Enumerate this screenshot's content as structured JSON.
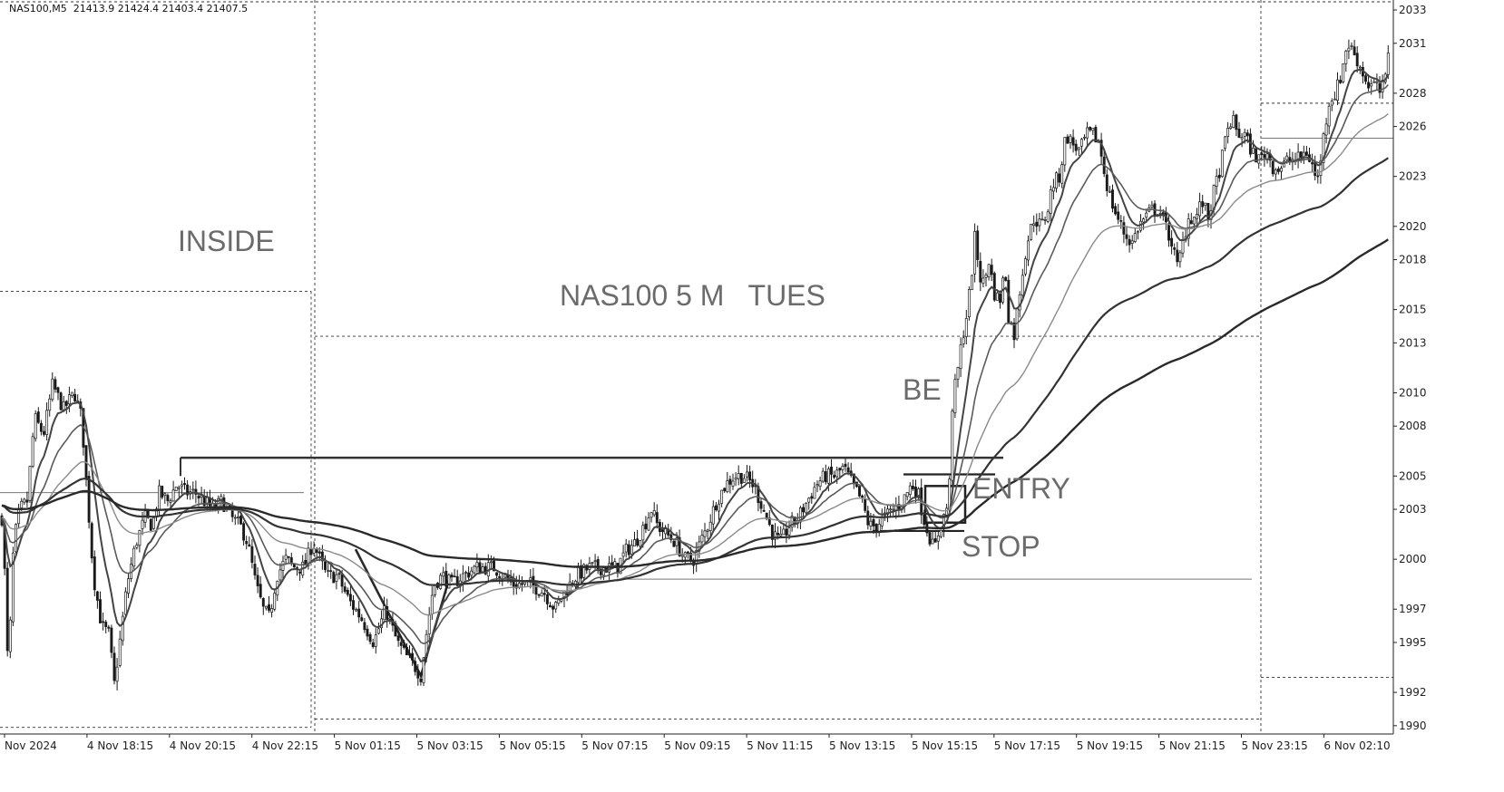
{
  "chart_data": {
    "type": "candlestick",
    "symbol_header": "NAS100,M5  21413.9 21424.4 21403.4 21407.5",
    "y_tick_labels": [
      "2033",
      "2031",
      "2028",
      "2026",
      "2023",
      "2020",
      "2018",
      "2015",
      "2013",
      "2010",
      "2008",
      "2005",
      "2003",
      "2000",
      "1997",
      "1995",
      "1992",
      "1990"
    ],
    "y_tick_values": [
      21033,
      21031,
      21028,
      21026,
      21023,
      21020,
      21018,
      21015,
      21013,
      21010,
      21008,
      21005,
      21003,
      21000,
      20997,
      20995,
      20992,
      20990
    ],
    "ylim": [
      20989.5,
      21033.6
    ],
    "x_tick_labels": [
      "Nov 2024",
      "4 Nov 18:15",
      "4 Nov 20:15",
      "4 Nov 22:15",
      "5 Nov 01:15",
      "5 Nov 03:15",
      "5 Nov 05:15",
      "5 Nov 07:15",
      "5 Nov 09:15",
      "5 Nov 11:15",
      "5 Nov 13:15",
      "5 Nov 15:15",
      "5 Nov 17:15",
      "5 Nov 19:15",
      "5 Nov 21:15",
      "5 Nov 23:15",
      "6 Nov 02:10"
    ],
    "annotations": [
      "INSIDE",
      "NAS100 5 M   TUES",
      "BE",
      "ENTRY",
      "STOP"
    ],
    "price_path": [
      [
        0,
        21004.0
      ],
      [
        4,
        21001.0
      ],
      [
        9,
        20993.0
      ],
      [
        15,
        21001.0
      ],
      [
        22,
        21003.0
      ],
      [
        30,
        21003.5
      ],
      [
        38,
        21008.5
      ],
      [
        48,
        21007.5
      ],
      [
        58,
        21010.5
      ],
      [
        70,
        21009.0
      ],
      [
        82,
        21010.0
      ],
      [
        90,
        21008.5
      ],
      [
        96,
        21004.0
      ],
      [
        103,
        20999.0
      ],
      [
        112,
        20996.0
      ],
      [
        120,
        20995.5
      ],
      [
        126,
        20992.5
      ],
      [
        132,
        20995.0
      ],
      [
        140,
        20998.5
      ],
      [
        150,
        21001.0
      ],
      [
        160,
        21002.5
      ],
      [
        168,
        21002.0
      ],
      [
        175,
        21004.0
      ],
      [
        185,
        21003.5
      ],
      [
        195,
        21004.5
      ],
      [
        205,
        21004.0
      ],
      [
        215,
        21004.0
      ],
      [
        225,
        21003.5
      ],
      [
        235,
        21003.0
      ],
      [
        245,
        21003.5
      ],
      [
        255,
        21002.5
      ],
      [
        265,
        21002.0
      ],
      [
        273,
        21001.0
      ],
      [
        282,
        20998.5
      ],
      [
        290,
        20997.0
      ],
      [
        297,
        20996.5
      ],
      [
        305,
        20999.0
      ],
      [
        315,
        21000.0
      ],
      [
        325,
        20999.5
      ],
      [
        335,
        20999.5
      ],
      [
        345,
        21001.0
      ],
      [
        360,
        20999.0
      ],
      [
        372,
        20999.0
      ],
      [
        385,
        20997.5
      ],
      [
        398,
        20996.5
      ],
      [
        412,
        20995.0
      ],
      [
        425,
        20997.0
      ],
      [
        438,
        20995.0
      ],
      [
        450,
        20994.0
      ],
      [
        458,
        20993.5
      ],
      [
        464,
        20993.0
      ],
      [
        470,
        20995.5
      ],
      [
        478,
        20998.5
      ],
      [
        488,
        20999.0
      ],
      [
        498,
        20998.5
      ],
      [
        510,
        20999.0
      ],
      [
        525,
        20999.5
      ],
      [
        545,
        20999.5
      ],
      [
        565,
        20998.5
      ],
      [
        585,
        20998.5
      ],
      [
        600,
        20998.0
      ],
      [
        612,
        20997.0
      ],
      [
        622,
        20998.0
      ],
      [
        635,
        20999.0
      ],
      [
        650,
        20999.5
      ],
      [
        665,
        20999.5
      ],
      [
        680,
        20999.5
      ],
      [
        690,
        21000.5
      ],
      [
        700,
        21001.0
      ],
      [
        710,
        21002.0
      ],
      [
        718,
        21003.0
      ],
      [
        725,
        21002.0
      ],
      [
        735,
        21001.5
      ],
      [
        745,
        21001.0
      ],
      [
        755,
        21000.0
      ],
      [
        765,
        21000.0
      ],
      [
        772,
        21001.0
      ],
      [
        780,
        21002.0
      ],
      [
        790,
        21003.5
      ],
      [
        800,
        21004.5
      ],
      [
        810,
        21005.0
      ],
      [
        820,
        21005.0
      ],
      [
        830,
        21004.5
      ],
      [
        838,
        21003.5
      ],
      [
        845,
        21002.5
      ],
      [
        852,
        21001.5
      ],
      [
        860,
        21001.0
      ],
      [
        870,
        21002.0
      ],
      [
        880,
        21002.5
      ],
      [
        890,
        21003.5
      ],
      [
        900,
        21004.5
      ],
      [
        910,
        21005.0
      ],
      [
        920,
        21005.0
      ],
      [
        930,
        21005.5
      ],
      [
        940,
        21004.5
      ],
      [
        950,
        21003.5
      ],
      [
        958,
        21002.0
      ],
      [
        965,
        21002.0
      ],
      [
        975,
        21002.5
      ],
      [
        985,
        21003.0
      ],
      [
        995,
        21003.5
      ],
      [
        1005,
        21004.5
      ],
      [
        1012,
        21004.0
      ],
      [
        1018,
        21002.5
      ],
      [
        1024,
        21001.5
      ],
      [
        1030,
        21000.5
      ],
      [
        1034,
        21001.5
      ],
      [
        1040,
        21002.5
      ],
      [
        1046,
        21003.5
      ],
      [
        1050,
        21009.5
      ],
      [
        1055,
        21011.0
      ],
      [
        1060,
        21013.0
      ],
      [
        1065,
        21014.5
      ],
      [
        1070,
        21016.5
      ],
      [
        1075,
        21019.5
      ],
      [
        1080,
        21017.0
      ],
      [
        1085,
        21016.5
      ],
      [
        1090,
        21018.0
      ],
      [
        1096,
        21016.0
      ],
      [
        1102,
        21015.5
      ],
      [
        1108,
        21017.5
      ],
      [
        1112,
        21014.5
      ],
      [
        1118,
        21013.5
      ],
      [
        1125,
        21016.5
      ],
      [
        1132,
        21019.0
      ],
      [
        1140,
        21020.5
      ],
      [
        1148,
        21020.0
      ],
      [
        1155,
        21021.0
      ],
      [
        1160,
        21022.5
      ],
      [
        1168,
        21023.0
      ],
      [
        1175,
        21025.5
      ],
      [
        1182,
        21025.0
      ],
      [
        1190,
        21024.5
      ],
      [
        1198,
        21025.5
      ],
      [
        1205,
        21025.5
      ],
      [
        1212,
        21025.0
      ],
      [
        1218,
        21023.0
      ],
      [
        1225,
        21021.5
      ],
      [
        1232,
        21020.5
      ],
      [
        1240,
        21019.5
      ],
      [
        1248,
        21019.0
      ],
      [
        1255,
        21020.0
      ],
      [
        1262,
        21020.5
      ],
      [
        1270,
        21021.0
      ],
      [
        1278,
        21021.0
      ],
      [
        1285,
        21020.0
      ],
      [
        1292,
        21019.0
      ],
      [
        1298,
        21017.5
      ],
      [
        1304,
        21019.0
      ],
      [
        1310,
        21020.5
      ],
      [
        1318,
        21020.5
      ],
      [
        1325,
        21021.5
      ],
      [
        1332,
        21020.5
      ],
      [
        1338,
        21022.0
      ],
      [
        1345,
        21023.5
      ],
      [
        1352,
        21025.5
      ],
      [
        1358,
        21026.5
      ],
      [
        1365,
        21025.5
      ],
      [
        1372,
        21025.5
      ],
      [
        1380,
        21024.5
      ],
      [
        1388,
        21024.0
      ],
      [
        1396,
        21024.5
      ],
      [
        1404,
        21023.5
      ],
      [
        1412,
        21023.5
      ],
      [
        1420,
        21024.0
      ],
      [
        1430,
        21024.0
      ],
      [
        1440,
        21024.5
      ],
      [
        1448,
        21023.5
      ],
      [
        1452,
        21022.5
      ],
      [
        1458,
        21025.0
      ],
      [
        1465,
        21027.5
      ],
      [
        1472,
        21028.0
      ],
      [
        1478,
        21029.0
      ],
      [
        1485,
        21031.0
      ],
      [
        1492,
        21030.5
      ],
      [
        1500,
        21029.5
      ],
      [
        1508,
        21028.5
      ],
      [
        1516,
        21028.5
      ],
      [
        1522,
        21028.0
      ],
      [
        1528,
        21029.0
      ],
      [
        1533,
        21032.5
      ]
    ]
  }
}
